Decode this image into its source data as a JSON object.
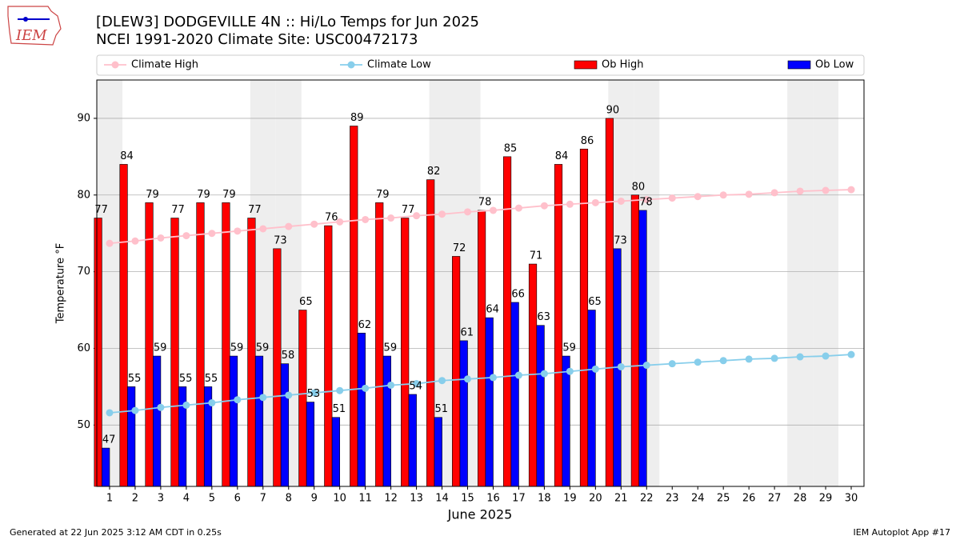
{
  "chart_data": {
    "type": "bar",
    "title": "[DLEW3] DODGEVILLE 4N :: Hi/Lo Temps for Jun 2025",
    "subtitle": "NCEI 1991-2020 Climate Site: USC00472173",
    "x_label": "June 2025",
    "y_label": "Temperature °F",
    "x": [
      1,
      2,
      3,
      4,
      5,
      6,
      7,
      8,
      9,
      10,
      11,
      12,
      13,
      14,
      15,
      16,
      17,
      18,
      19,
      20,
      21,
      22,
      23,
      24,
      25,
      26,
      27,
      28,
      29,
      30
    ],
    "xlim": [
      0.5,
      30.5
    ],
    "ylim": [
      42,
      95
    ],
    "yticks": [
      50,
      60,
      70,
      80,
      90
    ],
    "grid": true,
    "legend": "top",
    "shaded_x": [
      1,
      7,
      8,
      14,
      15,
      21,
      22,
      28,
      29
    ],
    "series": [
      {
        "name": "Climate High",
        "type": "line",
        "color": "#ffc0cb",
        "values": [
          73.7,
          74.0,
          74.4,
          74.7,
          75.0,
          75.3,
          75.6,
          75.9,
          76.2,
          76.5,
          76.8,
          77.0,
          77.3,
          77.5,
          77.8,
          78.0,
          78.3,
          78.6,
          78.8,
          79.0,
          79.2,
          79.4,
          79.6,
          79.8,
          80.0,
          80.1,
          80.3,
          80.5,
          80.6,
          80.7
        ]
      },
      {
        "name": "Climate Low",
        "type": "line",
        "color": "#87ceeb",
        "values": [
          51.6,
          51.9,
          52.3,
          52.6,
          52.9,
          53.3,
          53.6,
          53.9,
          54.2,
          54.5,
          54.8,
          55.2,
          55.4,
          55.8,
          56.0,
          56.2,
          56.5,
          56.7,
          57.0,
          57.3,
          57.6,
          57.8,
          58.0,
          58.2,
          58.4,
          58.6,
          58.7,
          58.9,
          59.0,
          59.2
        ]
      },
      {
        "name": "Ob High",
        "type": "bar",
        "color": "#ff0000",
        "values": [
          77,
          84,
          79,
          77,
          79,
          79,
          77,
          73,
          65,
          76,
          89,
          79,
          77,
          82,
          72,
          78,
          85,
          71,
          84,
          86,
          90,
          80,
          null,
          null,
          null,
          null,
          null,
          null,
          null,
          null
        ]
      },
      {
        "name": "Ob Low",
        "type": "bar",
        "color": "#0000ff",
        "values": [
          47,
          55,
          59,
          55,
          55,
          59,
          59,
          58,
          53,
          51,
          62,
          59,
          54,
          51,
          61,
          64,
          66,
          63,
          59,
          65,
          73,
          78,
          null,
          null,
          null,
          null,
          null,
          null,
          null,
          null
        ]
      }
    ],
    "logo_text": "IEM",
    "footer_left": "Generated at 22 Jun 2025 3:12 AM CDT in 0.25s",
    "footer_right": "IEM Autoplot App #17"
  }
}
